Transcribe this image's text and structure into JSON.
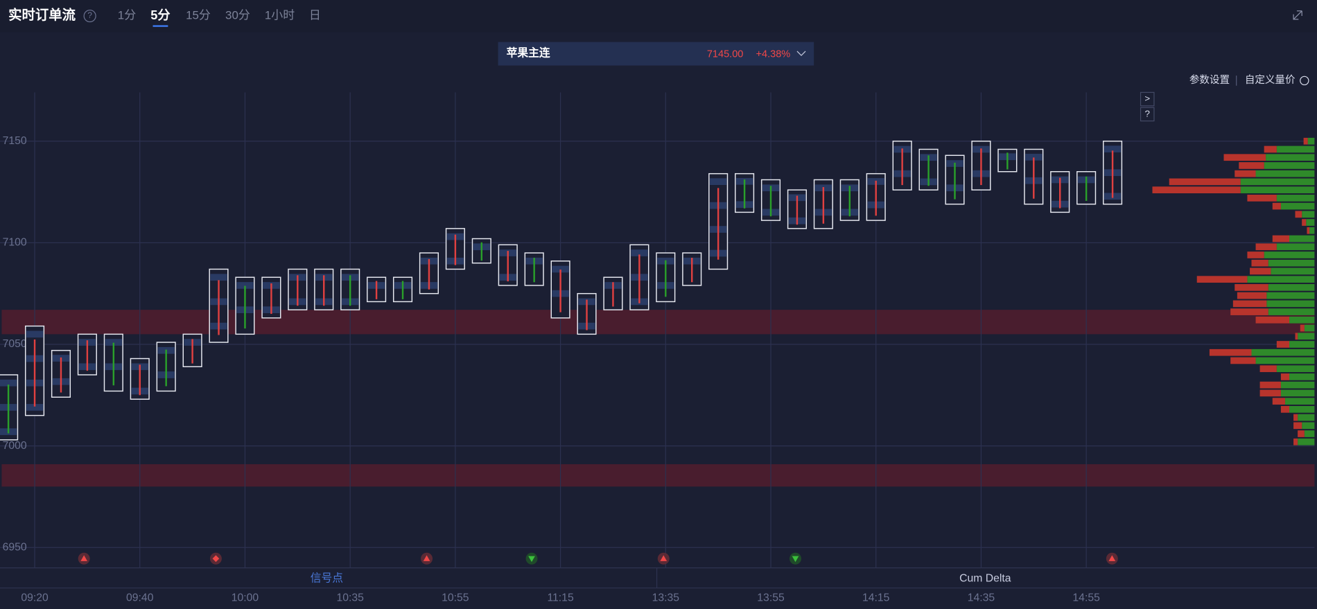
{
  "header": {
    "title": "实时订单流",
    "help": "?",
    "tabs": [
      "1分",
      "5分",
      "15分",
      "30分",
      "1小时",
      "日"
    ],
    "active_tab": 1
  },
  "symbol": {
    "name": "苹果主连",
    "price": "7145.00",
    "change": "+4.38%"
  },
  "links": [
    "参数设置",
    "自定义量价"
  ],
  "side_buttons": [
    ">",
    "?"
  ],
  "panels": [
    "信号点",
    "Cum Delta"
  ],
  "chart_data": {
    "type": "footprint",
    "categories": [
      null,
      "09:20",
      null,
      null,
      null,
      "09:40",
      null,
      null,
      null,
      "10:00",
      null,
      null,
      null,
      "10:35",
      null,
      null,
      null,
      "10:55",
      null,
      null,
      null,
      "11:15",
      null,
      null,
      null,
      "13:35",
      null,
      null,
      null,
      "13:55",
      null,
      null,
      null,
      "14:15",
      null,
      null,
      null,
      "14:35",
      null,
      null,
      null,
      "14:55",
      null
    ],
    "high": [
      7035,
      7059,
      7047,
      7055,
      7055,
      7043,
      7051,
      7055,
      7087,
      7083,
      7083,
      7087,
      7087,
      7087,
      7083,
      7083,
      7095,
      7107,
      7102,
      7099,
      7095,
      7091,
      7075,
      7083,
      7099,
      7095,
      7095,
      7134,
      7134,
      7131,
      7126,
      7131,
      7131,
      7134,
      7150,
      7146,
      7143,
      7150,
      7146,
      7146,
      7135,
      7135,
      7150
    ],
    "low": [
      7003,
      7015,
      7024,
      7035,
      7027,
      7023,
      7027,
      7039,
      7051,
      7055,
      7063,
      7067,
      7067,
      7067,
      7071,
      7071,
      7075,
      7087,
      7090,
      7079,
      7079,
      7063,
      7055,
      7067,
      7067,
      7071,
      7079,
      7087,
      7115,
      7111,
      7107,
      7107,
      7111,
      7111,
      7126,
      7126,
      7119,
      7126,
      7135,
      7119,
      7115,
      7119,
      7119
    ],
    "colors": [
      "#2aa02a",
      "#e04040",
      "#e04040",
      "#e04040",
      "#2aa02a",
      "#e04040",
      "#2aa02a",
      "#e04040",
      "#e04040",
      "#2aa02a",
      "#e04040",
      "#e04040",
      "#e04040",
      "#2aa02a",
      "#e04040",
      "#2aa02a",
      "#e04040",
      "#e04040",
      "#2aa02a",
      "#e04040",
      "#2aa02a",
      "#e04040",
      "#e04040",
      "#e04040",
      "#e04040",
      "#2aa02a",
      "#e04040",
      "#e04040",
      "#2aa02a",
      "#2aa02a",
      "#e04040",
      "#e04040",
      "#2aa02a",
      "#e04040",
      "#e04040",
      "#2aa02a",
      "#2aa02a",
      "#e04040",
      "#2aa02a",
      "#e04040",
      "#e04040",
      "#2aa02a",
      "#e04040"
    ],
    "zones": [
      [
        7055,
        7067
      ],
      [
        6980,
        6991
      ]
    ],
    "profile": {
      "prices": [
        7150,
        7146,
        7142,
        7138,
        7134,
        7130,
        7126,
        7122,
        7118,
        7114,
        7110,
        7106,
        7102,
        7098,
        7094,
        7090,
        7086,
        7082,
        7078,
        7074,
        7070,
        7066,
        7062,
        7058,
        7054,
        7050,
        7046,
        7042,
        7038,
        7034,
        7030,
        7026,
        7022,
        7018,
        7014,
        7010,
        7006,
        7002
      ],
      "sell": [
        5,
        15,
        50,
        30,
        25,
        85,
        105,
        35,
        10,
        8,
        5,
        3,
        20,
        25,
        20,
        20,
        25,
        60,
        40,
        35,
        40,
        45,
        40,
        5,
        3,
        15,
        50,
        30,
        20,
        10,
        25,
        25,
        15,
        10,
        5,
        10,
        8,
        5
      ],
      "buy": [
        8,
        45,
        58,
        60,
        70,
        88,
        88,
        45,
        40,
        15,
        10,
        6,
        30,
        45,
        60,
        55,
        52,
        80,
        55,
        57,
        57,
        55,
        30,
        12,
        20,
        30,
        75,
        70,
        45,
        30,
        40,
        40,
        35,
        30,
        20,
        15,
        12,
        20
      ]
    },
    "ylim": [
      6940,
      7174
    ],
    "yticks": [
      6950,
      7000,
      7050,
      7100,
      7150
    ],
    "grid": true
  }
}
